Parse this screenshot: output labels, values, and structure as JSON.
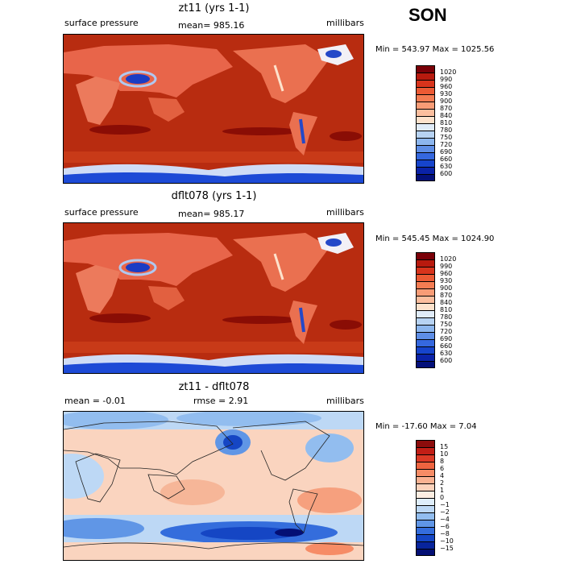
{
  "season": "SON",
  "colors": {
    "ocean": "#b82c10",
    "ocean_dark": "#8a0d05",
    "antarctic": "#1d4ad6"
  },
  "panels": [
    {
      "title": "zt11 (yrs 1-1)",
      "left_label": "surface pressure",
      "center_label": "mean= 985.16",
      "units": "millibars",
      "minmax": "Min = 543.97 Max = 1025.56",
      "colorbar": {
        "labels": [
          "1020",
          "990",
          "960",
          "930",
          "900",
          "870",
          "840",
          "810",
          "780",
          "750",
          "720",
          "690",
          "660",
          "630",
          "600"
        ],
        "colors": [
          "#7a0008",
          "#b81a0e",
          "#d8341c",
          "#ec5a34",
          "#f47c52",
          "#f89c76",
          "#fbbe9e",
          "#fde2cc",
          "#e0ecf9",
          "#b7d3f3",
          "#8cb6ee",
          "#5e8ee6",
          "#3568df",
          "#1644cc",
          "#0a22a8",
          "#04107a"
        ]
      }
    },
    {
      "title": "dflt078 (yrs 1-1)",
      "left_label": "surface pressure",
      "center_label": "mean= 985.17",
      "units": "millibars",
      "minmax": "Min = 545.45 Max = 1024.90",
      "colorbar": {
        "labels": [
          "1020",
          "990",
          "960",
          "930",
          "900",
          "870",
          "840",
          "810",
          "780",
          "750",
          "720",
          "690",
          "660",
          "630",
          "600"
        ],
        "colors": [
          "#7a0008",
          "#b81a0e",
          "#d8341c",
          "#ec5a34",
          "#f47c52",
          "#f89c76",
          "#fbbe9e",
          "#fde2cc",
          "#e0ecf9",
          "#b7d3f3",
          "#8cb6ee",
          "#5e8ee6",
          "#3568df",
          "#1644cc",
          "#0a22a8",
          "#04107a"
        ]
      }
    },
    {
      "title": "zt11 - dflt078",
      "left_label": "mean =   -0.01",
      "center_label": "rmse =    2.91",
      "units": "millibars",
      "minmax": "Min = -17.60 Max =    7.04",
      "colorbar": {
        "labels": [
          "15",
          "10",
          "8",
          "6",
          "4",
          "2",
          "1",
          "0",
          "−1",
          "−2",
          "−4",
          "−6",
          "−8",
          "−10",
          "−15"
        ],
        "colors": [
          "#8c0c0c",
          "#c21e16",
          "#dc3a26",
          "#ee6440",
          "#f68c66",
          "#f9b292",
          "#fcd3bc",
          "#fdeee2",
          "#dfeefb",
          "#bdd8f5",
          "#92bdef",
          "#6096e6",
          "#346ddc",
          "#1546c4",
          "#08249c",
          "#040f74"
        ]
      }
    }
  ]
}
